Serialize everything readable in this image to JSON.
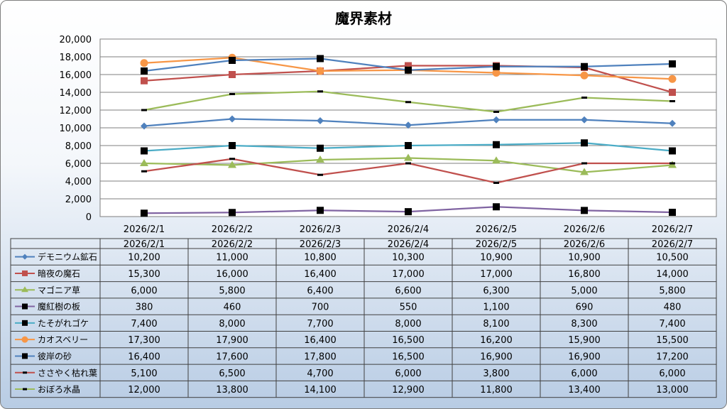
{
  "chart_data": {
    "type": "line",
    "title": "魔界素材",
    "categories": [
      "2026/2/1",
      "2026/2/2",
      "2026/2/3",
      "2026/2/4",
      "2026/2/5",
      "2026/2/6",
      "2026/2/7"
    ],
    "ylim": [
      0,
      20000
    ],
    "yticks": [
      0,
      2000,
      4000,
      6000,
      8000,
      10000,
      12000,
      14000,
      16000,
      18000,
      20000
    ],
    "ytick_labels": [
      "0",
      "2,000",
      "4,000",
      "6,000",
      "8,000",
      "10,000",
      "12,000",
      "14,000",
      "16,000",
      "18,000",
      "20,000"
    ],
    "grid": true,
    "legend": "data-table",
    "series": [
      {
        "name": "デモニウム鉱石",
        "color": "#4f81bd",
        "marker": "diamond",
        "values": [
          10200,
          11000,
          10800,
          10300,
          10900,
          10900,
          10500
        ],
        "labels": [
          "10,200",
          "11,000",
          "10,800",
          "10,300",
          "10,900",
          "10,900",
          "10,500"
        ]
      },
      {
        "name": "暗夜の魔石",
        "color": "#c0504d",
        "marker": "square",
        "values": [
          15300,
          16000,
          16400,
          17000,
          17000,
          16800,
          14000
        ],
        "labels": [
          "15,300",
          "16,000",
          "16,400",
          "17,000",
          "17,000",
          "16,800",
          "14,000"
        ]
      },
      {
        "name": "マゴニア草",
        "color": "#9bbb59",
        "marker": "triangle",
        "values": [
          6000,
          5800,
          6400,
          6600,
          6300,
          5000,
          5800
        ],
        "labels": [
          "6,000",
          "5,800",
          "6,400",
          "6,600",
          "6,300",
          "5,000",
          "5,800"
        ]
      },
      {
        "name": "魔紅樹の板",
        "color": "#8064a2",
        "marker": "square-black",
        "values": [
          380,
          460,
          700,
          550,
          1100,
          690,
          480
        ],
        "labels": [
          "380",
          "460",
          "700",
          "550",
          "1,100",
          "690",
          "480"
        ]
      },
      {
        "name": "たそがれゴケ",
        "color": "#4bacc6",
        "marker": "square-black",
        "values": [
          7400,
          8000,
          7700,
          8000,
          8100,
          8300,
          7400
        ],
        "labels": [
          "7,400",
          "8,000",
          "7,700",
          "8,000",
          "8,100",
          "8,300",
          "7,400"
        ]
      },
      {
        "name": "カオスベリー",
        "color": "#f79646",
        "marker": "circle",
        "values": [
          17300,
          17900,
          16400,
          16500,
          16200,
          15900,
          15500
        ],
        "labels": [
          "17,300",
          "17,900",
          "16,400",
          "16,500",
          "16,200",
          "15,900",
          "15,500"
        ]
      },
      {
        "name": "彼岸の砂",
        "color": "#4f81bd",
        "marker": "square-black",
        "values": [
          16400,
          17600,
          17800,
          16500,
          16900,
          16900,
          17200
        ],
        "labels": [
          "16,400",
          "17,600",
          "17,800",
          "16,500",
          "16,900",
          "16,900",
          "17,200"
        ]
      },
      {
        "name": "ささやく枯れ葉",
        "color": "#c0504d",
        "marker": "dash",
        "values": [
          5100,
          6500,
          4700,
          6000,
          3800,
          6000,
          6000
        ],
        "labels": [
          "5,100",
          "6,500",
          "4,700",
          "6,000",
          "3,800",
          "6,000",
          "6,000"
        ]
      },
      {
        "name": "おぼろ水晶",
        "color": "#9bbb59",
        "marker": "dash",
        "values": [
          12000,
          13800,
          14100,
          12900,
          11800,
          13400,
          13000
        ],
        "labels": [
          "12,000",
          "13,800",
          "14,100",
          "12,900",
          "11,800",
          "13,400",
          "13,000"
        ]
      }
    ]
  }
}
